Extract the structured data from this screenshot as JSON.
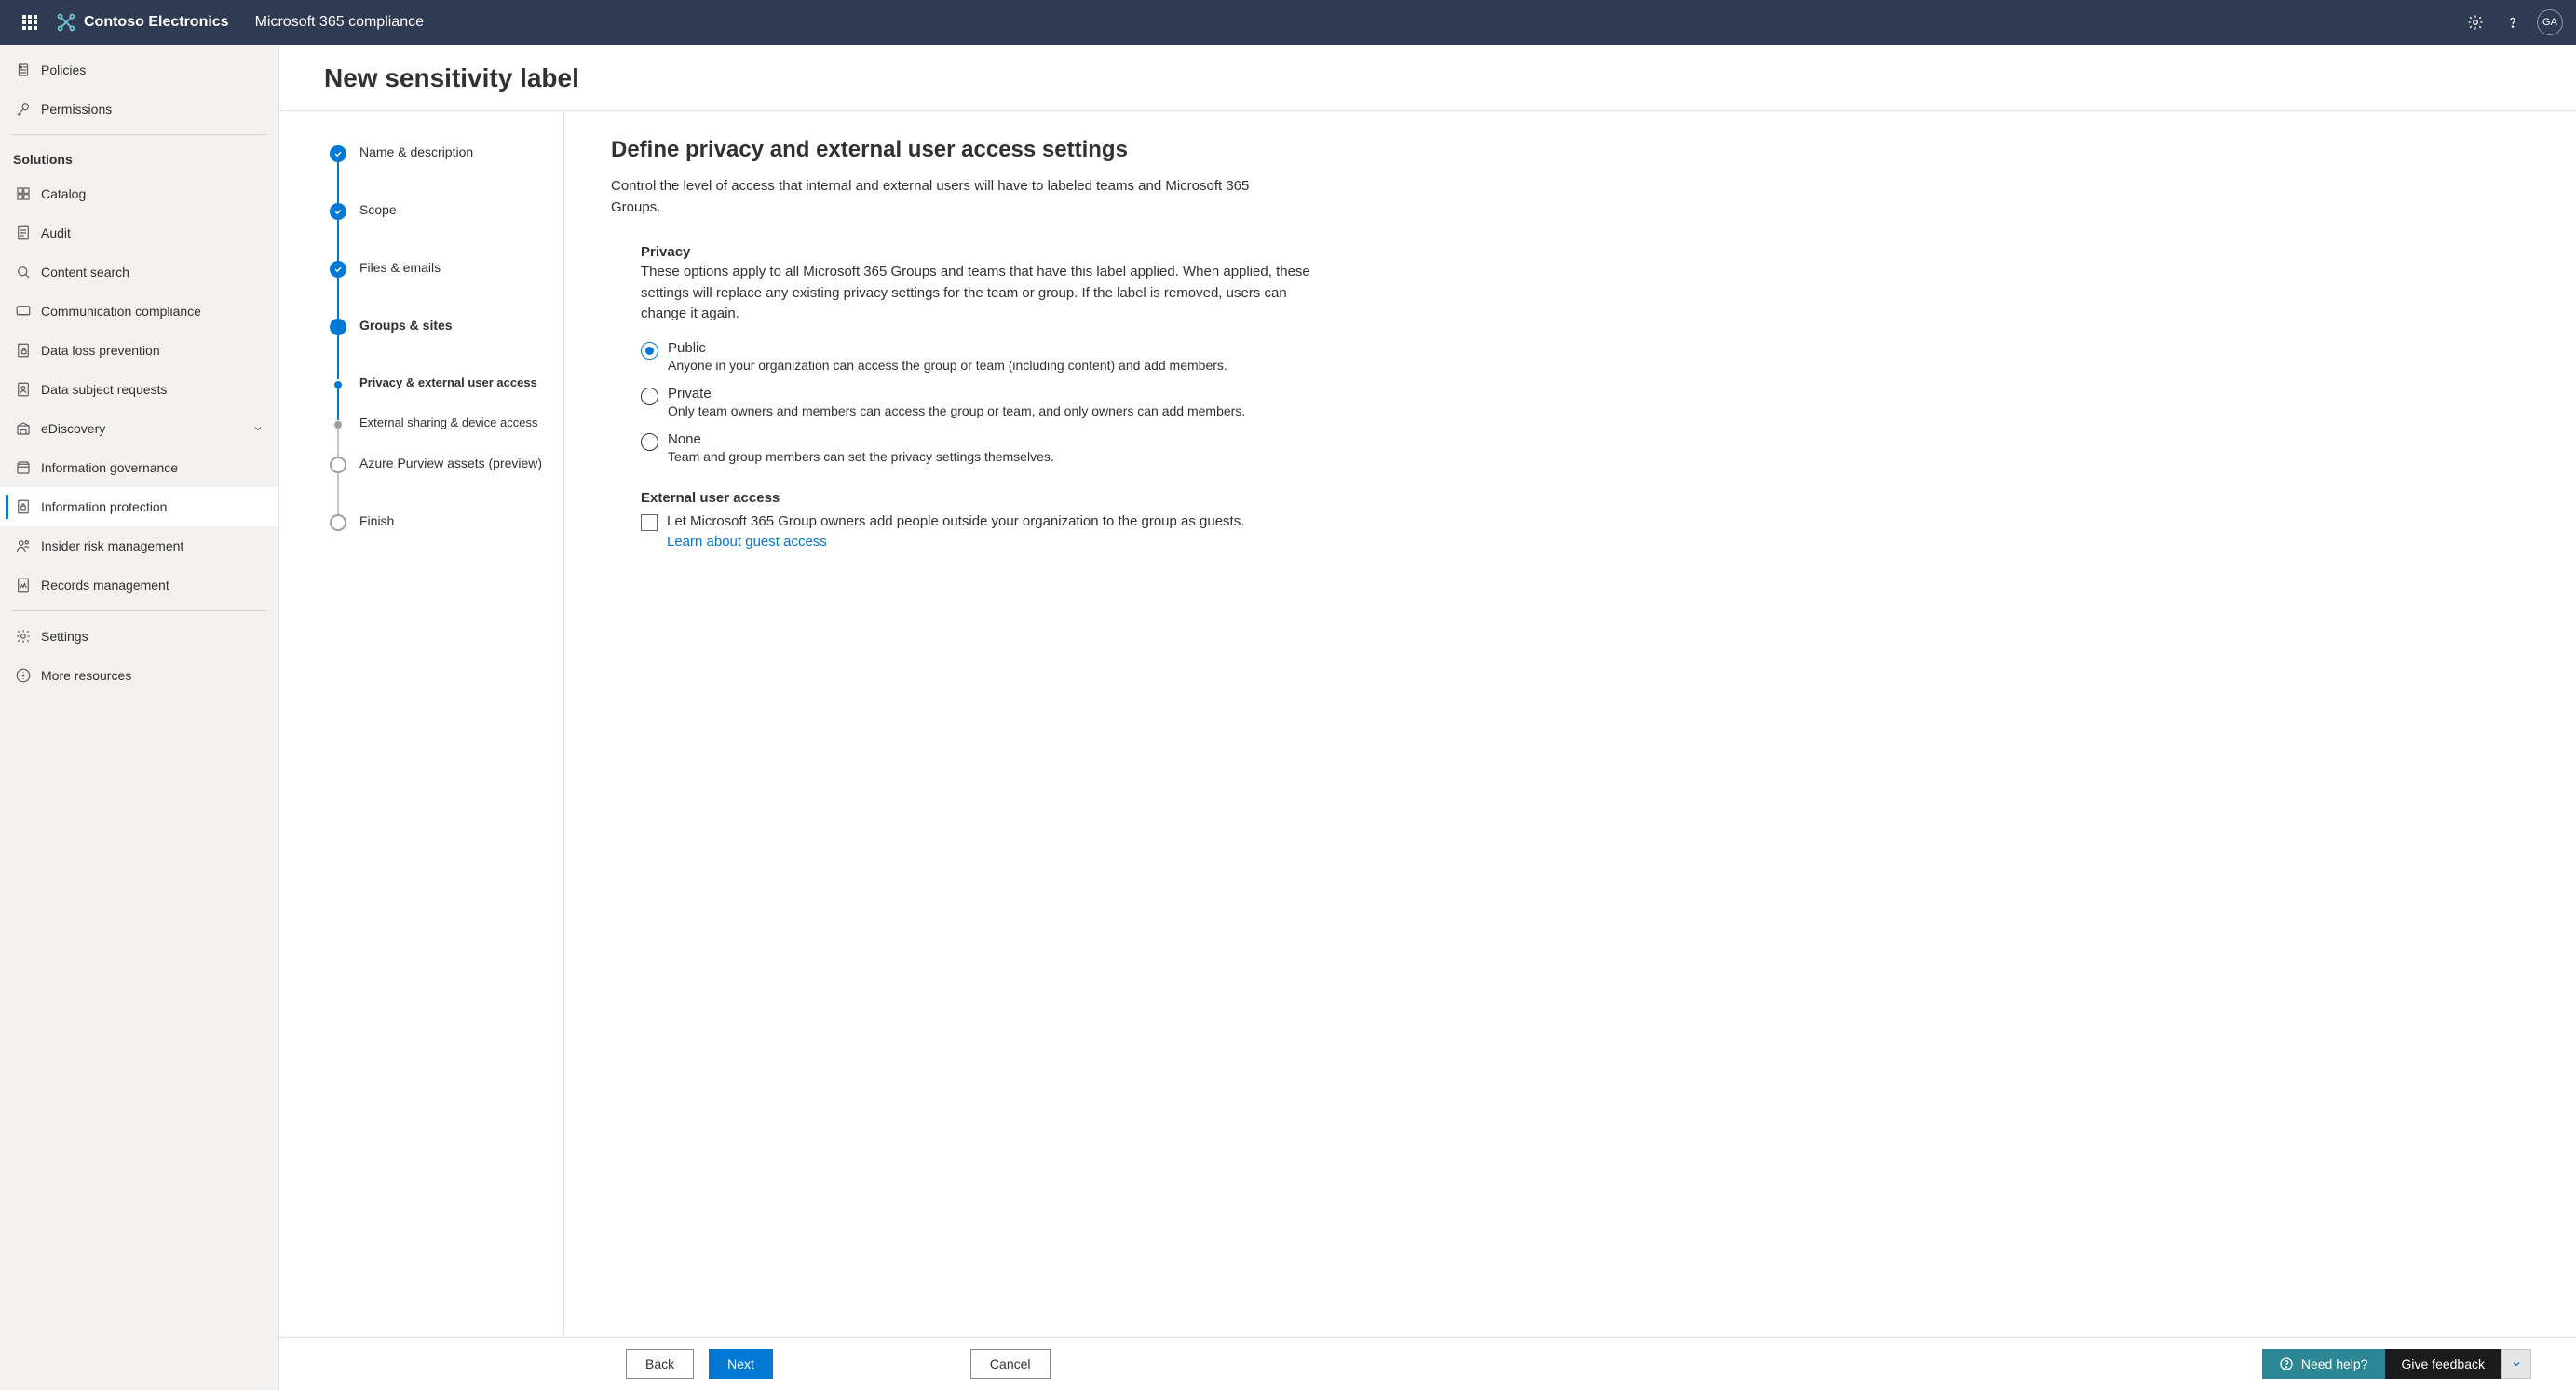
{
  "topbar": {
    "brand_name": "Contoso Electronics",
    "product_name": "Microsoft 365 compliance",
    "avatar_initials": "GA",
    "bg_color": "#2f3b52"
  },
  "sidebar": {
    "items_top": [
      {
        "icon": "policies",
        "label": "Policies"
      },
      {
        "icon": "permissions",
        "label": "Permissions"
      }
    ],
    "solutions_heading": "Solutions",
    "solutions": [
      {
        "icon": "catalog",
        "label": "Catalog"
      },
      {
        "icon": "audit",
        "label": "Audit"
      },
      {
        "icon": "search",
        "label": "Content search"
      },
      {
        "icon": "comm",
        "label": "Communication compliance"
      },
      {
        "icon": "dlp",
        "label": "Data loss prevention"
      },
      {
        "icon": "dsr",
        "label": "Data subject requests"
      },
      {
        "icon": "ediscovery",
        "label": "eDiscovery",
        "expandable": true
      },
      {
        "icon": "infogov",
        "label": "Information governance"
      },
      {
        "icon": "infoprot",
        "label": "Information protection",
        "active": true
      },
      {
        "icon": "insider",
        "label": "Insider risk management"
      },
      {
        "icon": "records",
        "label": "Records management"
      }
    ],
    "bottom": [
      {
        "icon": "settings",
        "label": "Settings"
      },
      {
        "icon": "more",
        "label": "More resources"
      }
    ]
  },
  "main": {
    "title": "New sensitivity label"
  },
  "wizard": {
    "steps": [
      {
        "label": "Name & description",
        "state": "completed"
      },
      {
        "label": "Scope",
        "state": "completed"
      },
      {
        "label": "Files & emails",
        "state": "completed"
      },
      {
        "label": "Groups & sites",
        "state": "current"
      },
      {
        "label": "Privacy & external user access",
        "state": "sub-current"
      },
      {
        "label": "External sharing & device access",
        "state": "sub-upcoming"
      },
      {
        "label": "Azure Purview assets (preview)",
        "state": "upcoming"
      },
      {
        "label": "Finish",
        "state": "upcoming"
      }
    ]
  },
  "content": {
    "heading": "Define privacy and external user access settings",
    "description": "Control the level of access that internal and external users will have to labeled teams and Microsoft 365 Groups.",
    "privacy": {
      "title": "Privacy",
      "description": "These options apply to all Microsoft 365 Groups and teams that have this label applied. When applied, these settings will replace any existing privacy settings for the team or group. If the label is removed, users can change it again.",
      "options": [
        {
          "label": "Public",
          "desc": "Anyone in your organization can access the group or team (including content) and add members.",
          "checked": true
        },
        {
          "label": "Private",
          "desc": "Only team owners and members can access the group or team, and only owners can add members.",
          "checked": false
        },
        {
          "label": "None",
          "desc": "Team and group members can set the privacy settings themselves.",
          "checked": false
        }
      ]
    },
    "external": {
      "title": "External user access",
      "checkbox_label": "Let Microsoft 365 Group owners add people outside your organization to the group as guests.",
      "link_text": "Learn about guest access",
      "checked": false
    }
  },
  "footer": {
    "back": "Back",
    "next": "Next",
    "cancel": "Cancel",
    "need_help": "Need help?",
    "give_feedback": "Give feedback"
  }
}
